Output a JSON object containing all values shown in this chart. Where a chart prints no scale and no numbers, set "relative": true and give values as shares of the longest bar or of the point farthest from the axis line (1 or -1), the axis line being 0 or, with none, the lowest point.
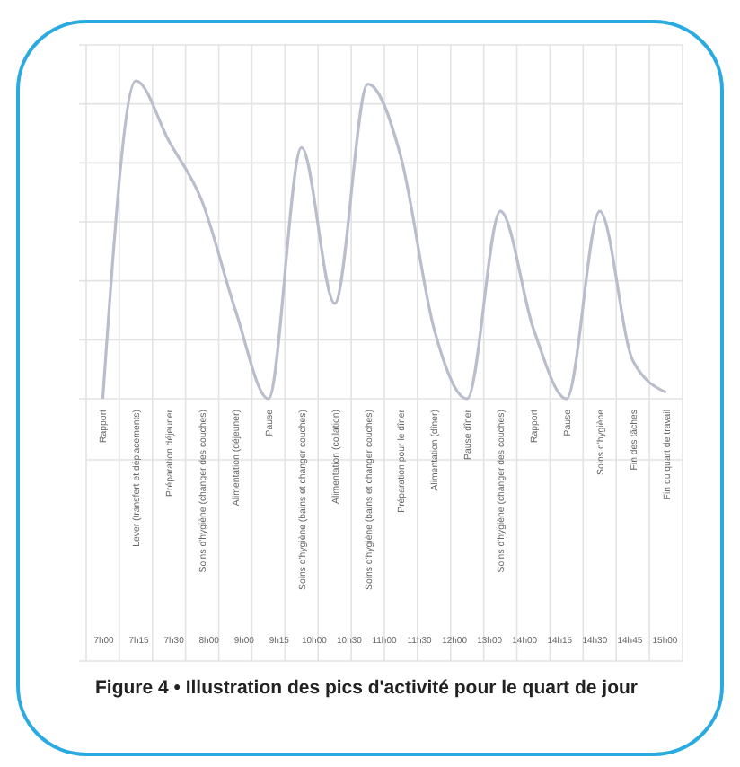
{
  "chart_data": {
    "type": "line",
    "relative": true,
    "title": "Figure 4 • Illustration des pics d'activité pour le quart de jour",
    "categories": [
      "Rapport",
      "Lever (transfert et déplacements)",
      "Préparation déjeuner",
      "Soins d'hygiène (changer des couches)",
      "Alimentation (déjeuner)",
      "Pause",
      "Soins d'hygiène (bains et changer couches)",
      "Alimentation (collation)",
      "Soins d'hygiène (bains et changer couches)",
      "Préparation pour le dîner",
      "Alimentation (dîner)",
      "Pause dîner",
      "Soins d'hygiène (changer des couches)",
      "Rapport",
      "Pause",
      "Soins d'hygiène",
      "Fin des tâches",
      "Fin du quart de travail"
    ],
    "series": [
      {
        "color": "#b9bdcc",
        "values": [
          0,
          1,
          0.81,
          0.62,
          0.28,
          0,
          0.79,
          0.3,
          0.99,
          0.76,
          0.22,
          0,
          0.59,
          0.22,
          0,
          0.59,
          0.12,
          0.02
        ]
      }
    ],
    "annotations": [
      "7h00",
      "7h15",
      "7h30",
      "8h00",
      "9h00",
      "9h15",
      "10h00",
      "10h30",
      "11h00",
      "11h30",
      "12h00",
      "13h00",
      "14h00",
      "14h15",
      "14h30",
      "14h45",
      "15h00"
    ],
    "grid": true,
    "marker": "none",
    "line_style": "solid"
  }
}
